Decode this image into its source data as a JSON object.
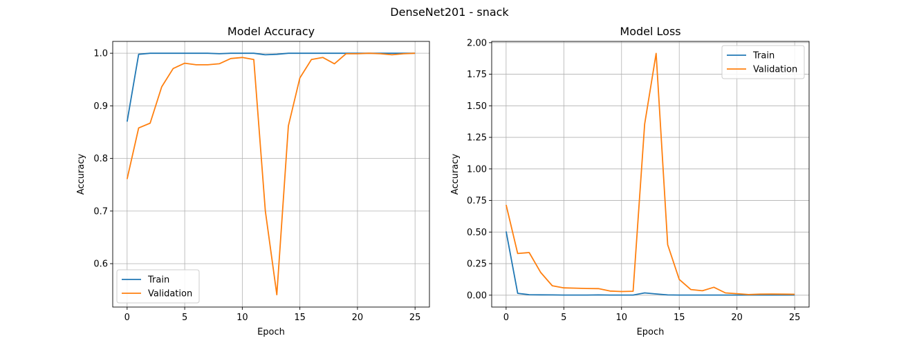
{
  "figure": {
    "suptitle": "DenseNet201 - snack"
  },
  "colors": {
    "train": "#1f77b4",
    "validation": "#ff7f0e",
    "grid": "#b0b0b0",
    "axis": "#000000"
  },
  "chart_data": [
    {
      "type": "line",
      "title": "Model Accuracy",
      "xlabel": "Epoch",
      "ylabel": "Accuracy",
      "xlim": [
        -1.25,
        26.25
      ],
      "ylim": [
        0.5175,
        1.0225
      ],
      "xticks": [
        0,
        5,
        10,
        15,
        20,
        25
      ],
      "xtick_labels": [
        "0",
        "5",
        "10",
        "15",
        "20",
        "25"
      ],
      "yticks": [
        0.6,
        0.7,
        0.8,
        0.9,
        1.0
      ],
      "ytick_labels": [
        "0.6",
        "0.7",
        "0.8",
        "0.9",
        "1.0"
      ],
      "grid": true,
      "legend": "lower left",
      "x": [
        0,
        1,
        2,
        3,
        4,
        5,
        6,
        7,
        8,
        9,
        10,
        11,
        12,
        13,
        14,
        15,
        16,
        17,
        18,
        19,
        20,
        21,
        22,
        23,
        24,
        25
      ],
      "series": [
        {
          "name": "Train",
          "color": "#1f77b4",
          "values": [
            0.87,
            0.998,
            1.0,
            1.0,
            1.0,
            1.0,
            1.0,
            1.0,
            0.999,
            1.0,
            1.0,
            1.0,
            0.997,
            0.998,
            1.0,
            1.0,
            1.0,
            1.0,
            1.0,
            1.0,
            1.0,
            1.0,
            1.0,
            1.0,
            1.0,
            1.0
          ]
        },
        {
          "name": "Validation",
          "color": "#ff7f0e",
          "values": [
            0.761,
            0.858,
            0.867,
            0.936,
            0.971,
            0.981,
            0.978,
            0.978,
            0.98,
            0.99,
            0.992,
            0.988,
            0.7,
            0.541,
            0.862,
            0.953,
            0.988,
            0.992,
            0.98,
            0.999,
            0.999,
            1.0,
            0.999,
            0.997,
            0.999,
            1.0
          ]
        }
      ]
    },
    {
      "type": "line",
      "title": "Model Loss",
      "xlabel": "Epoch",
      "ylabel": "Accuracy",
      "xlim": [
        -1.25,
        26.25
      ],
      "ylim": [
        -0.094,
        2.01
      ],
      "xticks": [
        0,
        5,
        10,
        15,
        20,
        25
      ],
      "xtick_labels": [
        "0",
        "5",
        "10",
        "15",
        "20",
        "25"
      ],
      "yticks": [
        0.0,
        0.25,
        0.5,
        0.75,
        1.0,
        1.25,
        1.5,
        1.75,
        2.0
      ],
      "ytick_labels": [
        "0.00",
        "0.25",
        "0.50",
        "0.75",
        "1.00",
        "1.25",
        "1.50",
        "1.75",
        "2.00"
      ],
      "grid": true,
      "legend": "upper right",
      "x": [
        0,
        1,
        2,
        3,
        4,
        5,
        6,
        7,
        8,
        9,
        10,
        11,
        12,
        13,
        14,
        15,
        16,
        17,
        18,
        19,
        20,
        21,
        22,
        23,
        24,
        25
      ],
      "series": [
        {
          "name": "Train",
          "color": "#1f77b4",
          "values": [
            0.505,
            0.015,
            0.004,
            0.003,
            0.002,
            0.001,
            0.001,
            0.001,
            0.002,
            0.001,
            0.001,
            0.001,
            0.018,
            0.01,
            0.002,
            0.001,
            0.001,
            0.001,
            0.001,
            0.001,
            0.001,
            0.001,
            0.001,
            0.001,
            0.001,
            0.001
          ]
        },
        {
          "name": "Validation",
          "color": "#ff7f0e",
          "values": [
            0.715,
            0.33,
            0.338,
            0.18,
            0.075,
            0.058,
            0.056,
            0.053,
            0.052,
            0.033,
            0.029,
            0.031,
            1.355,
            1.915,
            0.4,
            0.125,
            0.045,
            0.035,
            0.063,
            0.018,
            0.012,
            0.005,
            0.008,
            0.009,
            0.008,
            0.007
          ]
        }
      ]
    }
  ]
}
